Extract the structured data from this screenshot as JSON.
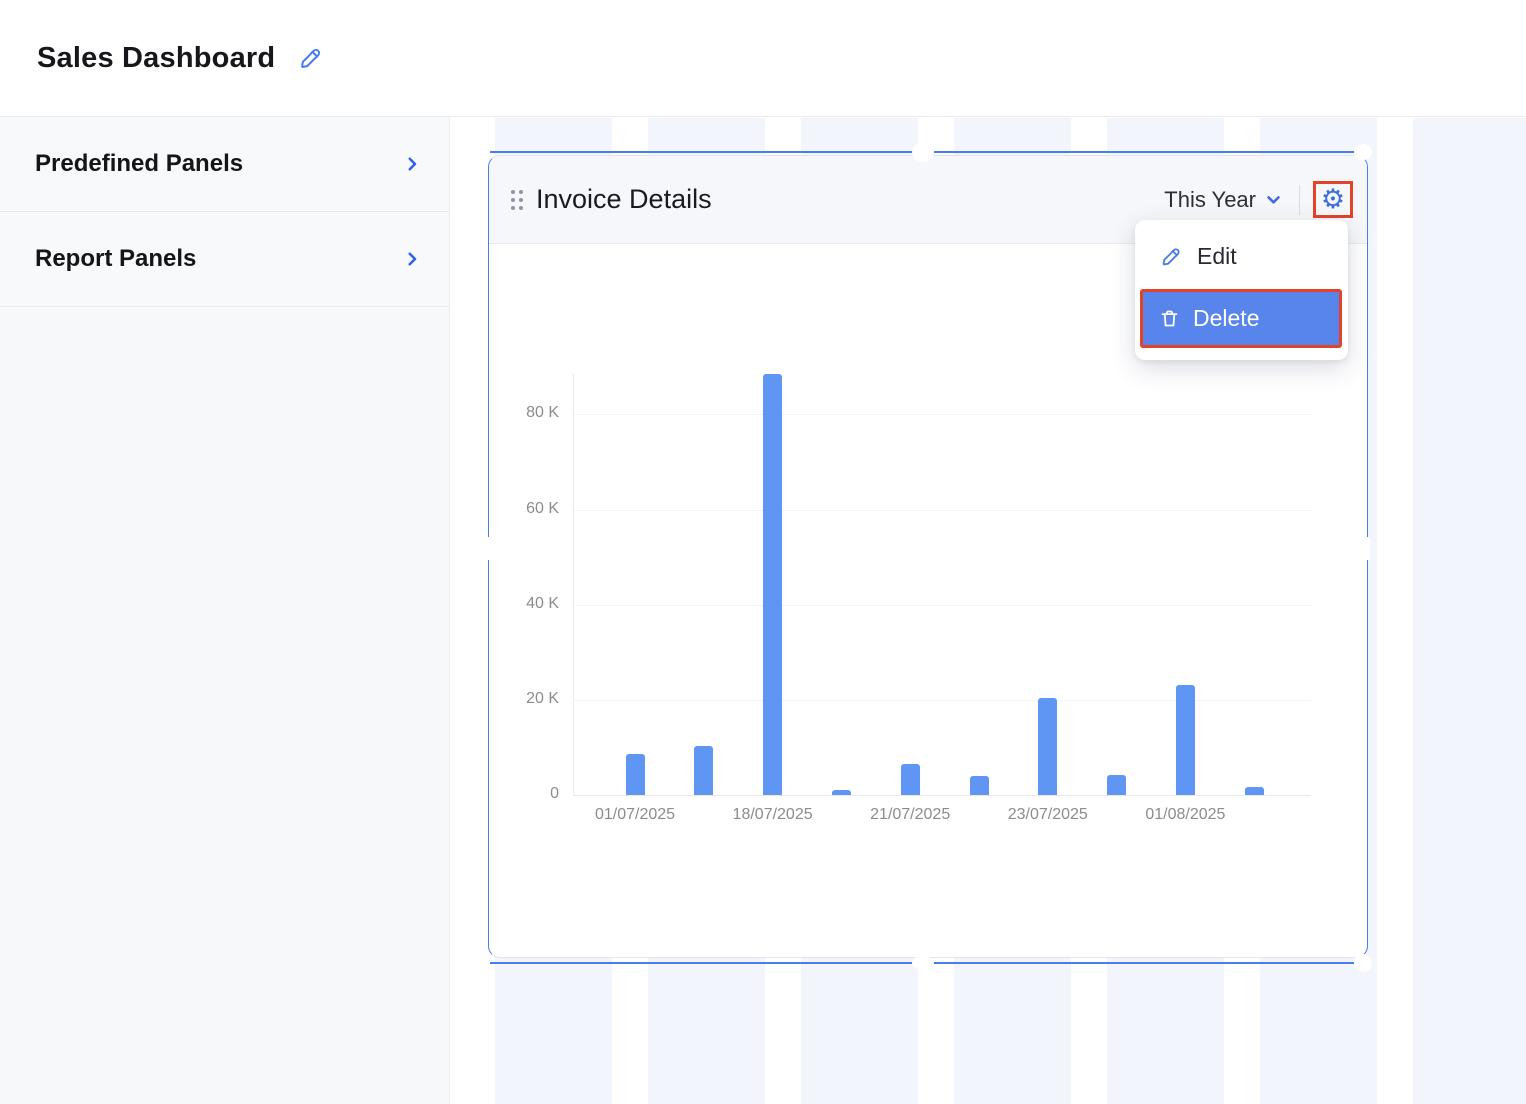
{
  "page": {
    "title": "Sales Dashboard"
  },
  "sidebar": {
    "items": [
      {
        "label": "Predefined Panels"
      },
      {
        "label": "Report Panels"
      }
    ]
  },
  "panel": {
    "title": "Invoice Details",
    "period_label": "This Year",
    "menu": {
      "edit_label": "Edit",
      "delete_label": "Delete"
    }
  },
  "chart_data": {
    "type": "bar",
    "title": "Invoice Details",
    "categories": [
      "01/07/2025",
      "",
      "18/07/2025",
      "",
      "21/07/2025",
      "",
      "23/07/2025",
      "",
      "01/08/2025",
      ""
    ],
    "values": [
      8600,
      10300,
      88500,
      1000,
      6500,
      4000,
      20400,
      4200,
      23200,
      1700
    ],
    "x_tick_labels": [
      "01/07/2025",
      "18/07/2025",
      "21/07/2025",
      "23/07/2025",
      "01/08/2025"
    ],
    "y_tick_labels": [
      "0",
      "20 K",
      "40 K",
      "60 K",
      "80 K"
    ],
    "y_tick_values": [
      0,
      20000,
      40000,
      60000,
      80000
    ],
    "ylim": [
      0,
      88500
    ],
    "xlabel": "",
    "ylabel": "",
    "grid": true,
    "legend_position": "none",
    "bar_color": "#5f96f3"
  },
  "colors": {
    "accent_blue": "#3e6be0",
    "bar_blue": "#5f96f3",
    "delete_row_bg": "#5885ec",
    "annotation_red": "#e24329",
    "grid_stripe": "#f2f5fc",
    "panel_outline": "#4a7de9"
  },
  "icons": {
    "title_edit": "pencil-icon",
    "sidebar_expand": "chevron-right-icon",
    "period_dropdown": "chevron-down-icon",
    "panel_settings": "gear-icon",
    "menu_edit": "pencil-icon",
    "menu_delete": "trash-icon",
    "panel_drag": "drag-handle-icon"
  }
}
